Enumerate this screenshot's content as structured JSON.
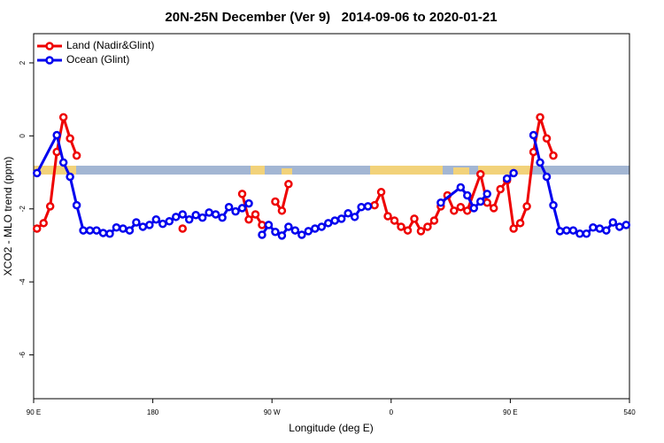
{
  "chart_data": {
    "type": "line",
    "title": "20N-25N December (Ver 9)   2014-09-06 to 2020-01-21",
    "x_label": "Longitude (deg E)",
    "y_label": "XCO2 - MLO trend (ppm)",
    "xlim": [
      90,
      540
    ],
    "ylim": [
      -7.2,
      2.8
    ],
    "xticks": [
      {
        "value": 90,
        "label": "90 E"
      },
      180,
      {
        "value": 270,
        "label": "90 W"
      },
      {
        "value": 360,
        "label": "0"
      },
      {
        "value": 450,
        "label": "90 E"
      },
      540
    ],
    "yticks": [
      -6,
      -4,
      -2,
      0,
      2
    ],
    "legend": "top-left",
    "series": [
      {
        "name": "Land (Nadir&Glint)",
        "color": "#ee0000",
        "x": [
          92.5,
          97.5,
          102.5,
          107.5,
          112.5,
          117.5,
          122.5,
          127.5,
          202.5,
          207.5,
          247.5,
          252.5,
          257.5,
          262.5,
          267.5,
          272.5,
          277.5,
          282.5,
          287.5,
          347.5,
          352.5,
          357.5,
          362.5,
          367.5,
          372.5,
          377.5,
          382.5,
          387.5,
          392.5,
          397.5,
          402.5,
          407.5,
          412.5,
          417.5,
          427.5,
          432.5,
          437.5,
          442.5,
          447.5,
          452.5,
          457.5,
          462.5,
          467.5,
          472.5,
          477.5,
          482.5
        ],
        "values": [
          -2.54,
          -2.39,
          -1.93,
          -0.44,
          0.51,
          -0.07,
          -0.54,
          null,
          -2.54,
          null,
          -1.59,
          -2.29,
          -2.15,
          -2.44,
          null,
          -1.8,
          -2.05,
          -1.32,
          null,
          -1.9,
          -1.54,
          -2.2,
          -2.32,
          -2.49,
          -2.59,
          -2.27,
          -2.61,
          -2.49,
          -2.32,
          -1.93,
          -1.63,
          -2.05,
          -1.95,
          -2.05,
          -1.05,
          -1.83,
          -1.98,
          -1.46,
          -1.22,
          -2.54,
          -2.39,
          -1.93,
          -0.44,
          0.51,
          -0.07,
          -0.54
        ]
      },
      {
        "name": "Ocean (Glint)",
        "color": "#0000ee",
        "x": [
          92.5,
          107.5,
          112.5,
          117.5,
          122.5,
          127.5,
          132.5,
          137.5,
          142.5,
          147.5,
          152.5,
          157.5,
          162.5,
          167.5,
          172.5,
          177.5,
          182.5,
          187.5,
          192.5,
          197.5,
          202.5,
          207.5,
          212.5,
          217.5,
          222.5,
          227.5,
          232.5,
          237.5,
          242.5,
          247.5,
          252.5,
          257.5,
          262.5,
          267.5,
          272.5,
          277.5,
          282.5,
          287.5,
          292.5,
          297.5,
          302.5,
          307.5,
          312.5,
          317.5,
          322.5,
          327.5,
          332.5,
          337.5,
          342.5,
          347.5,
          397.5,
          412.5,
          417.5,
          422.5,
          427.5,
          432.5,
          437.5,
          447.5,
          452.5,
          457.5,
          467.5,
          472.5,
          477.5,
          482.5,
          487.5,
          492.5,
          497.5,
          502.5,
          507.5,
          512.5,
          517.5,
          522.5,
          527.5,
          532.5,
          537.5
        ],
        "values": [
          -1.02,
          0.02,
          -0.73,
          -1.12,
          -1.9,
          -2.59,
          -2.59,
          -2.59,
          -2.66,
          -2.68,
          -2.51,
          -2.54,
          -2.59,
          -2.37,
          -2.49,
          -2.44,
          -2.29,
          -2.41,
          -2.34,
          -2.22,
          -2.15,
          -2.29,
          -2.17,
          -2.24,
          -2.1,
          -2.15,
          -2.24,
          -1.95,
          -2.07,
          -1.98,
          -1.85,
          null,
          -2.71,
          -2.44,
          -2.63,
          -2.73,
          -2.49,
          -2.59,
          -2.71,
          -2.61,
          -2.54,
          -2.49,
          -2.39,
          -2.32,
          -2.27,
          -2.12,
          -2.22,
          -1.95,
          -1.93,
          null,
          -1.83,
          -1.41,
          -1.63,
          -1.98,
          -1.8,
          -1.59,
          null,
          -1.17,
          -1.02,
          null,
          0.02,
          -0.73,
          -1.12,
          -1.9,
          -2.61,
          -2.59,
          -2.59,
          -2.68,
          -2.68,
          -2.51,
          -2.54,
          -2.59,
          -2.37,
          -2.49,
          -2.44
        ]
      }
    ]
  }
}
